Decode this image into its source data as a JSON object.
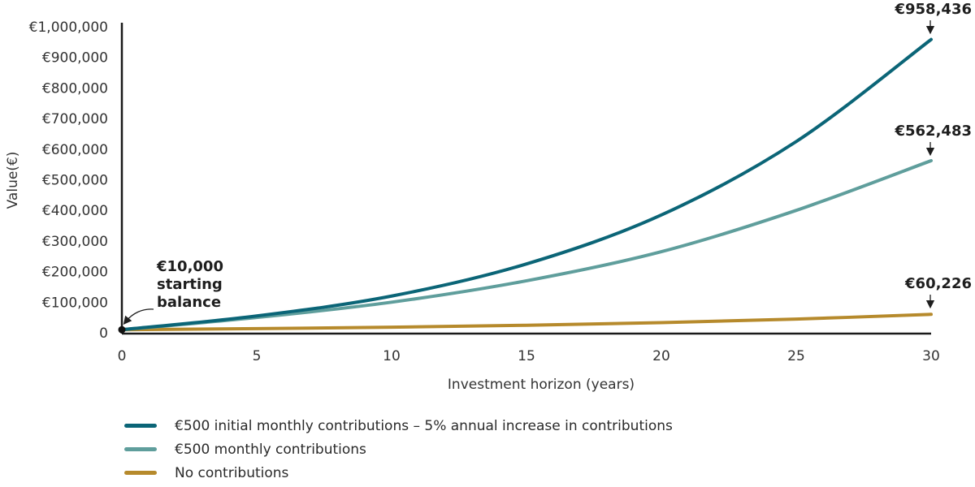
{
  "chart_data": {
    "type": "line",
    "title": "",
    "xlabel": "Investment horizon (years)",
    "ylabel": "Value(€)",
    "xlim": [
      0,
      30
    ],
    "ylim": [
      0,
      1000000
    ],
    "x_ticks": [
      "0",
      "5",
      "10",
      "15",
      "20",
      "25",
      "30"
    ],
    "x_tick_values": [
      0,
      5,
      10,
      15,
      20,
      25,
      30
    ],
    "y_ticks": [
      "0",
      "€100,000",
      "€200,000",
      "€300,000",
      "€400,000",
      "€500,000",
      "€600,000",
      "€700,000",
      "€800,000",
      "€900,000",
      "€1,000,000"
    ],
    "y_tick_values": [
      0,
      100000,
      200000,
      300000,
      400000,
      500000,
      600000,
      700000,
      800000,
      900000,
      1000000
    ],
    "grid": false,
    "legend_position": "bottom",
    "x": [
      0,
      5,
      10,
      15,
      20,
      25,
      30
    ],
    "series": [
      {
        "name": "€500 initial monthly contributions – 5% annual increase in contributions",
        "color": "#0b6577",
        "values": [
          10000,
          55000,
          120000,
          225000,
          385000,
          625000,
          958436
        ]
      },
      {
        "name": "€500 monthly contributions",
        "color": "#5f9e9c",
        "values": [
          10000,
          50000,
          100000,
          170000,
          265000,
          400000,
          562483
        ]
      },
      {
        "name": "No contributions",
        "color": "#b68a2c",
        "values": [
          10000,
          13500,
          18200,
          24600,
          33200,
          44800,
          60226
        ]
      }
    ],
    "annotations": [
      {
        "text_lines": [
          "€10,000",
          "starting",
          "balance"
        ],
        "x": 0,
        "y": 10000
      },
      {
        "text": "€958,436",
        "x": 30,
        "y": 958436
      },
      {
        "text": "€562,483",
        "x": 30,
        "y": 562483
      },
      {
        "text": "€60,226",
        "x": 30,
        "y": 60226
      }
    ]
  }
}
